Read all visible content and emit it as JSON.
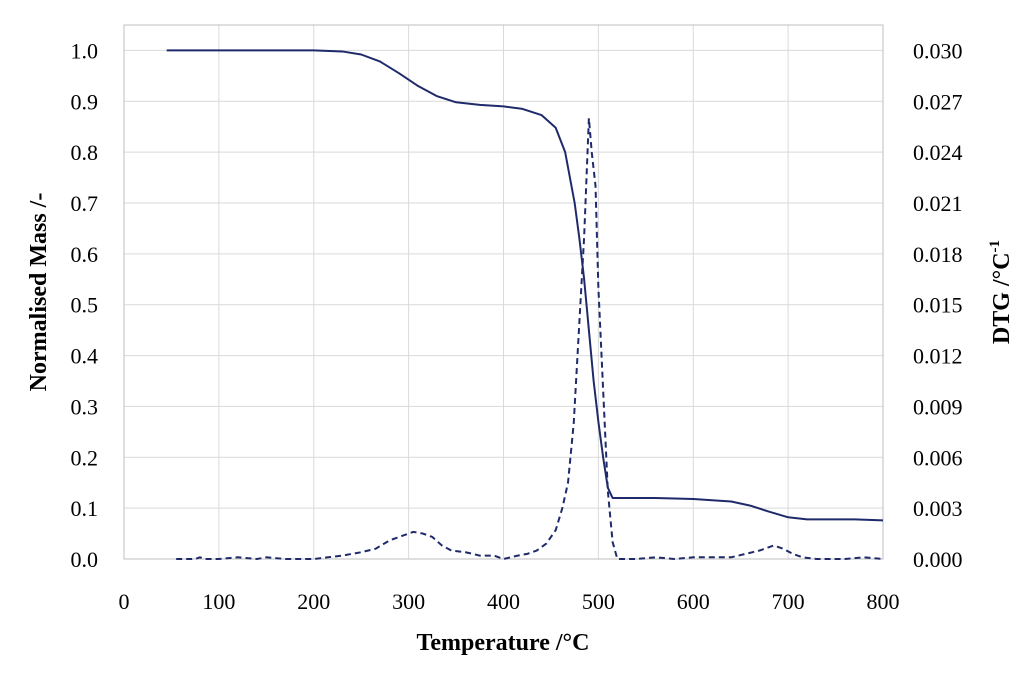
{
  "chart_data": {
    "type": "line",
    "xlabel": "Temperature /°C",
    "ylabel": "Normalised Mass /-",
    "y2label_main": "DTG /°C",
    "y2label_sup": "-1",
    "xlim": [
      0,
      800
    ],
    "ylim": [
      0,
      1.05
    ],
    "y2lim": [
      0,
      0.0315
    ],
    "xticks": [
      "0",
      "100",
      "200",
      "300",
      "400",
      "500",
      "600",
      "700",
      "800"
    ],
    "yticks": [
      "0.0",
      "0.1",
      "0.2",
      "0.3",
      "0.4",
      "0.5",
      "0.6",
      "0.7",
      "0.8",
      "0.9",
      "1.0"
    ],
    "y2ticks": [
      "0.000",
      "0.003",
      "0.006",
      "0.009",
      "0.012",
      "0.015",
      "0.018",
      "0.021",
      "0.024",
      "0.027",
      "0.030"
    ],
    "grid": true,
    "legend": "none",
    "colors": {
      "series": "#1f2a6b",
      "grid": "#d9d9d9"
    },
    "series": [
      {
        "axis": "left",
        "style": "solid",
        "points": [
          [
            45,
            1.0
          ],
          [
            100,
            1.0
          ],
          [
            150,
            1.0
          ],
          [
            200,
            1.0
          ],
          [
            230,
            0.998
          ],
          [
            250,
            0.992
          ],
          [
            270,
            0.978
          ],
          [
            290,
            0.955
          ],
          [
            310,
            0.93
          ],
          [
            330,
            0.91
          ],
          [
            350,
            0.898
          ],
          [
            375,
            0.893
          ],
          [
            400,
            0.89
          ],
          [
            420,
            0.885
          ],
          [
            440,
            0.873
          ],
          [
            455,
            0.848
          ],
          [
            465,
            0.8
          ],
          [
            475,
            0.7
          ],
          [
            480,
            0.63
          ],
          [
            485,
            0.55
          ],
          [
            490,
            0.45
          ],
          [
            495,
            0.35
          ],
          [
            500,
            0.27
          ],
          [
            505,
            0.2
          ],
          [
            510,
            0.14
          ],
          [
            515,
            0.12
          ],
          [
            530,
            0.12
          ],
          [
            560,
            0.12
          ],
          [
            600,
            0.118
          ],
          [
            640,
            0.113
          ],
          [
            660,
            0.105
          ],
          [
            680,
            0.093
          ],
          [
            700,
            0.082
          ],
          [
            720,
            0.078
          ],
          [
            750,
            0.078
          ],
          [
            770,
            0.078
          ],
          [
            800,
            0.076
          ]
        ]
      },
      {
        "axis": "right",
        "style": "dashed",
        "points": [
          [
            55,
            0.0
          ],
          [
            75,
            0.0
          ],
          [
            80,
            0.0001
          ],
          [
            85,
            0.0
          ],
          [
            100,
            0.0
          ],
          [
            120,
            0.0001
          ],
          [
            140,
            0.0
          ],
          [
            150,
            0.0001
          ],
          [
            170,
            0.0
          ],
          [
            200,
            0.0
          ],
          [
            215,
            0.0001
          ],
          [
            230,
            0.0002
          ],
          [
            250,
            0.0004
          ],
          [
            265,
            0.0006
          ],
          [
            280,
            0.0011
          ],
          [
            290,
            0.0013
          ],
          [
            300,
            0.0015
          ],
          [
            305,
            0.0016
          ],
          [
            315,
            0.0015
          ],
          [
            325,
            0.0013
          ],
          [
            335,
            0.0008
          ],
          [
            345,
            0.0005
          ],
          [
            360,
            0.0004
          ],
          [
            375,
            0.0002
          ],
          [
            390,
            0.0002
          ],
          [
            400,
            0.0
          ],
          [
            415,
            0.0002
          ],
          [
            425,
            0.0003
          ],
          [
            435,
            0.0005
          ],
          [
            445,
            0.0009
          ],
          [
            455,
            0.0017
          ],
          [
            462,
            0.003
          ],
          [
            468,
            0.0045
          ],
          [
            474,
            0.008
          ],
          [
            480,
            0.014
          ],
          [
            485,
            0.019
          ],
          [
            490,
            0.026
          ],
          [
            493,
            0.024
          ],
          [
            497,
            0.022
          ],
          [
            500,
            0.016
          ],
          [
            505,
            0.01
          ],
          [
            510,
            0.004
          ],
          [
            515,
            0.001
          ],
          [
            520,
            0.0
          ],
          [
            540,
            0.0
          ],
          [
            560,
            0.0001
          ],
          [
            580,
            0.0
          ],
          [
            600,
            0.0001
          ],
          [
            620,
            0.0001
          ],
          [
            640,
            0.0001
          ],
          [
            655,
            0.0003
          ],
          [
            670,
            0.0005
          ],
          [
            685,
            0.0008
          ],
          [
            695,
            0.0006
          ],
          [
            705,
            0.0003
          ],
          [
            715,
            0.0001
          ],
          [
            730,
            0.0
          ],
          [
            760,
            0.0
          ],
          [
            780,
            0.0001
          ],
          [
            800,
            0.0
          ]
        ]
      }
    ]
  }
}
